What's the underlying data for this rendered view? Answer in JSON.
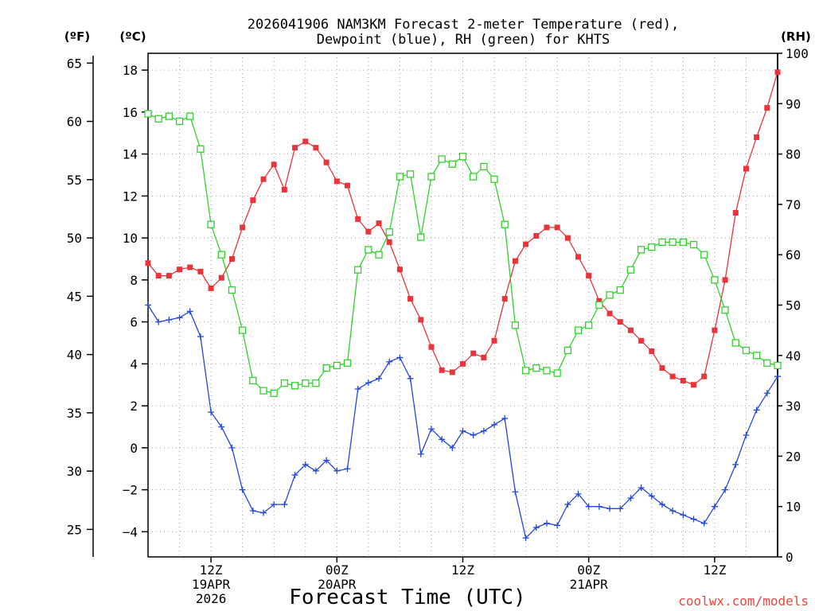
{
  "title_line1": "2026041906 NAM3KM Forecast 2-meter Temperature (red),",
  "title_line2": "Dewpoint (blue), RH (green) for KHTS",
  "unit_f": "(ºF)",
  "unit_c": "(ºC)",
  "unit_rh": "(RH)",
  "xlabel": "Forecast Time (UTC)",
  "credit": "coolwx.com/models",
  "chart_data": {
    "type": "line",
    "x_axis": {
      "range_hours_utc": [
        6,
        66
      ],
      "tick_labels": [
        {
          "hour": 12,
          "lines": [
            "12Z",
            "19APR",
            "2026"
          ]
        },
        {
          "hour": 24,
          "lines": [
            "00Z",
            "20APR"
          ]
        },
        {
          "hour": 36,
          "lines": [
            "12Z"
          ]
        },
        {
          "hour": 48,
          "lines": [
            "00Z",
            "21APR"
          ]
        },
        {
          "hour": 60,
          "lines": [
            "12Z"
          ]
        }
      ]
    },
    "y_axis_c": {
      "range": [
        -5.2,
        18.8
      ],
      "ticks": [
        -4,
        -2,
        0,
        2,
        4,
        6,
        8,
        10,
        12,
        14,
        16,
        18
      ]
    },
    "y_axis_f": {
      "ticks": [
        25,
        30,
        35,
        40,
        45,
        50,
        55,
        60,
        65
      ]
    },
    "y_axis_rh": {
      "range": [
        0,
        100
      ],
      "ticks": [
        0,
        10,
        20,
        30,
        40,
        50,
        60,
        70,
        80,
        90,
        100
      ]
    },
    "grid": true,
    "series": [
      {
        "name": "Temperature",
        "color": "#e8343a",
        "axis": "c",
        "marker": "filled-square",
        "points": [
          [
            6,
            8.8
          ],
          [
            7,
            8.2
          ],
          [
            8,
            8.2
          ],
          [
            9,
            8.5
          ],
          [
            10,
            8.6
          ],
          [
            11,
            8.4
          ],
          [
            12,
            7.6
          ],
          [
            13,
            8.1
          ],
          [
            14,
            9.0
          ],
          [
            15,
            10.5
          ],
          [
            16,
            11.8
          ],
          [
            17,
            12.8
          ],
          [
            18,
            13.5
          ],
          [
            19,
            12.3
          ],
          [
            20,
            14.3
          ],
          [
            21,
            14.6
          ],
          [
            22,
            14.3
          ],
          [
            23,
            13.6
          ],
          [
            24,
            12.7
          ],
          [
            25,
            12.5
          ],
          [
            26,
            10.9
          ],
          [
            27,
            10.3
          ],
          [
            28,
            10.7
          ],
          [
            29,
            9.8
          ],
          [
            30,
            8.5
          ],
          [
            31,
            7.1
          ],
          [
            32,
            6.1
          ],
          [
            33,
            4.8
          ],
          [
            34,
            3.7
          ],
          [
            35,
            3.6
          ],
          [
            36,
            4.0
          ],
          [
            37,
            4.5
          ],
          [
            38,
            4.3
          ],
          [
            39,
            5.1
          ],
          [
            40,
            7.1
          ],
          [
            41,
            8.9
          ],
          [
            42,
            9.7
          ],
          [
            43,
            10.1
          ],
          [
            44,
            10.5
          ],
          [
            45,
            10.5
          ],
          [
            46,
            10.0
          ],
          [
            47,
            9.1
          ],
          [
            48,
            8.2
          ],
          [
            49,
            7.0
          ],
          [
            50,
            6.4
          ],
          [
            51,
            6.0
          ],
          [
            52,
            5.6
          ],
          [
            53,
            5.1
          ],
          [
            54,
            4.6
          ],
          [
            55,
            3.8
          ],
          [
            56,
            3.4
          ],
          [
            57,
            3.2
          ],
          [
            58,
            3.0
          ],
          [
            59,
            3.4
          ],
          [
            60,
            5.6
          ],
          [
            61,
            8.0
          ],
          [
            62,
            11.2
          ],
          [
            63,
            13.3
          ],
          [
            64,
            14.8
          ],
          [
            65,
            16.2
          ],
          [
            66,
            17.9
          ]
        ]
      },
      {
        "name": "Dewpoint",
        "color": "#2347e0",
        "axis": "c",
        "marker": "plus",
        "points": [
          [
            6,
            6.8
          ],
          [
            7,
            6.0
          ],
          [
            8,
            6.1
          ],
          [
            9,
            6.2
          ],
          [
            10,
            6.5
          ],
          [
            11,
            5.3
          ],
          [
            12,
            1.7
          ],
          [
            13,
            1.0
          ],
          [
            14,
            0.0
          ],
          [
            15,
            -2.0
          ],
          [
            16,
            -3.0
          ],
          [
            17,
            -3.1
          ],
          [
            18,
            -2.7
          ],
          [
            19,
            -2.7
          ],
          [
            20,
            -1.3
          ],
          [
            21,
            -0.8
          ],
          [
            22,
            -1.1
          ],
          [
            23,
            -0.6
          ],
          [
            24,
            -1.1
          ],
          [
            25,
            -1.0
          ],
          [
            26,
            2.8
          ],
          [
            27,
            3.1
          ],
          [
            28,
            3.3
          ],
          [
            29,
            4.1
          ],
          [
            30,
            4.3
          ],
          [
            31,
            3.3
          ],
          [
            32,
            -0.3
          ],
          [
            33,
            0.9
          ],
          [
            34,
            0.4
          ],
          [
            35,
            0.0
          ],
          [
            36,
            0.8
          ],
          [
            37,
            0.6
          ],
          [
            38,
            0.8
          ],
          [
            39,
            1.1
          ],
          [
            40,
            1.4
          ],
          [
            41,
            -2.1
          ],
          [
            42,
            -4.3
          ],
          [
            43,
            -3.8
          ],
          [
            44,
            -3.6
          ],
          [
            45,
            -3.7
          ],
          [
            46,
            -2.7
          ],
          [
            47,
            -2.2
          ],
          [
            48,
            -2.8
          ],
          [
            49,
            -2.8
          ],
          [
            50,
            -2.9
          ],
          [
            51,
            -2.9
          ],
          [
            52,
            -2.4
          ],
          [
            53,
            -1.9
          ],
          [
            54,
            -2.3
          ],
          [
            55,
            -2.7
          ],
          [
            56,
            -3.0
          ],
          [
            57,
            -3.2
          ],
          [
            58,
            -3.4
          ],
          [
            59,
            -3.6
          ],
          [
            60,
            -2.8
          ],
          [
            61,
            -2.0
          ],
          [
            62,
            -0.8
          ],
          [
            63,
            0.6
          ],
          [
            64,
            1.8
          ],
          [
            65,
            2.6
          ],
          [
            66,
            3.4
          ]
        ]
      },
      {
        "name": "RH",
        "color": "#2fd42a",
        "axis": "rh",
        "marker": "open-square",
        "points": [
          [
            6,
            88
          ],
          [
            7,
            87
          ],
          [
            8,
            87.5
          ],
          [
            9,
            86.5
          ],
          [
            10,
            87.5
          ],
          [
            11,
            81
          ],
          [
            12,
            66
          ],
          [
            13,
            60
          ],
          [
            14,
            53
          ],
          [
            15,
            45
          ],
          [
            16,
            35
          ],
          [
            17,
            33
          ],
          [
            18,
            32.5
          ],
          [
            19,
            34.5
          ],
          [
            20,
            34
          ],
          [
            21,
            34.5
          ],
          [
            22,
            34.5
          ],
          [
            23,
            37.5
          ],
          [
            24,
            38
          ],
          [
            25,
            38.5
          ],
          [
            26,
            57
          ],
          [
            27,
            61
          ],
          [
            28,
            60
          ],
          [
            29,
            64.5
          ],
          [
            30,
            75.5
          ],
          [
            31,
            76
          ],
          [
            32,
            63.5
          ],
          [
            33,
            75.5
          ],
          [
            34,
            79
          ],
          [
            35,
            78
          ],
          [
            36,
            79.5
          ],
          [
            37,
            75.5
          ],
          [
            38,
            77.5
          ],
          [
            39,
            75
          ],
          [
            40,
            66
          ],
          [
            41,
            46
          ],
          [
            42,
            37
          ],
          [
            43,
            37.5
          ],
          [
            44,
            37
          ],
          [
            45,
            36.5
          ],
          [
            46,
            41
          ],
          [
            47,
            45
          ],
          [
            48,
            46
          ],
          [
            49,
            50
          ],
          [
            50,
            52
          ],
          [
            51,
            53
          ],
          [
            52,
            57
          ],
          [
            53,
            61
          ],
          [
            54,
            61.5
          ],
          [
            55,
            62.5
          ],
          [
            56,
            62.5
          ],
          [
            57,
            62.5
          ],
          [
            58,
            62
          ],
          [
            59,
            60
          ],
          [
            60,
            55
          ],
          [
            61,
            49
          ],
          [
            62,
            42.5
          ],
          [
            63,
            41
          ],
          [
            64,
            40
          ],
          [
            65,
            38.5
          ],
          [
            66,
            38
          ]
        ]
      }
    ]
  }
}
